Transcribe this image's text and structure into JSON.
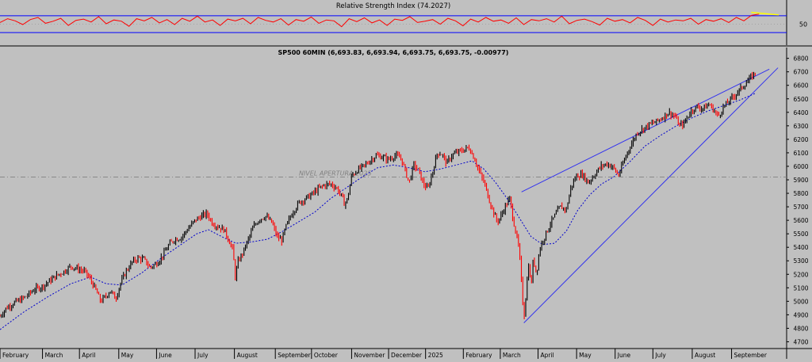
{
  "chart_data": [
    {
      "type": "line",
      "title": "Relative Strength Index (74.2027)",
      "ylim": [
        0,
        100
      ],
      "bands": [
        30,
        70
      ],
      "ticks": [
        {
          "value": 50,
          "label": "50"
        }
      ],
      "series": [
        {
          "color": "#ff0000",
          "values": [
            54,
            63,
            58,
            49,
            61,
            66,
            52,
            57,
            64,
            47,
            59,
            62,
            55,
            68,
            51,
            60,
            57,
            45,
            63,
            58,
            66,
            53,
            61,
            49,
            64,
            57,
            69,
            55,
            60,
            47,
            62,
            58,
            64,
            51,
            66,
            59,
            55,
            63,
            48,
            61,
            57,
            67,
            52,
            60,
            58,
            44,
            63,
            56,
            65,
            53,
            60,
            47,
            62,
            59,
            68,
            54,
            57,
            61,
            50,
            64,
            58,
            46,
            62,
            55,
            66,
            57,
            60,
            52,
            65,
            49,
            61,
            58,
            63,
            55,
            69,
            51,
            59,
            62,
            56,
            48,
            64,
            57,
            61,
            53,
            66,
            59,
            47,
            62,
            55,
            60,
            58,
            64,
            50,
            61,
            57,
            63,
            54,
            66,
            58,
            71,
            74
          ]
        }
      ],
      "annotations": [
        {
          "type": "trendline",
          "color": "#ffff00",
          "x0": 0.955,
          "y0": 78,
          "x1": 0.99,
          "y1": 72
        }
      ]
    },
    {
      "type": "line",
      "title": "SP500 60MIN (6,693.83, 6,693.94, 6,693.75, 6,693.75, -0.00977)",
      "ylim": [
        4650,
        6880
      ],
      "y_ticks": [
        4700,
        4800,
        4900,
        5000,
        5100,
        5200,
        5300,
        5400,
        5500,
        5600,
        5700,
        5800,
        5900,
        6000,
        6100,
        6200,
        6300,
        6400,
        6500,
        6600,
        6700,
        6800
      ],
      "x_ticks": [
        {
          "label": "February",
          "pos": 0.0
        },
        {
          "label": "March",
          "pos": 0.054
        },
        {
          "label": "April",
          "pos": 0.101
        },
        {
          "label": "May",
          "pos": 0.151
        },
        {
          "label": "June",
          "pos": 0.199
        },
        {
          "label": "July",
          "pos": 0.248
        },
        {
          "label": "August",
          "pos": 0.298
        },
        {
          "label": "September",
          "pos": 0.35
        },
        {
          "label": "October",
          "pos": 0.396
        },
        {
          "label": "November",
          "pos": 0.447
        },
        {
          "label": "December",
          "pos": 0.494
        },
        {
          "label": "2025",
          "pos": 0.541
        },
        {
          "label": "February",
          "pos": 0.589
        },
        {
          "label": "March",
          "pos": 0.636
        },
        {
          "label": "April",
          "pos": 0.684
        },
        {
          "label": "May",
          "pos": 0.733
        },
        {
          "label": "June",
          "pos": 0.782
        },
        {
          "label": "July",
          "pos": 0.83
        },
        {
          "label": "August",
          "pos": 0.88
        },
        {
          "label": "September",
          "pos": 0.93
        }
      ],
      "series": [
        {
          "color": "#000000",
          "points": [
            [
              0.0,
              4890
            ],
            [
              0.008,
              4950
            ],
            [
              0.018,
              4990
            ],
            [
              0.026,
              5010
            ],
            [
              0.034,
              5040
            ],
            [
              0.044,
              5090
            ],
            [
              0.054,
              5110
            ],
            [
              0.063,
              5150
            ],
            [
              0.072,
              5190
            ],
            [
              0.081,
              5220
            ],
            [
              0.09,
              5260
            ],
            [
              0.099,
              5240
            ],
            [
              0.108,
              5220
            ],
            [
              0.115,
              5160
            ],
            [
              0.122,
              5080
            ],
            [
              0.128,
              5000
            ],
            [
              0.135,
              5040
            ],
            [
              0.14,
              5080
            ],
            [
              0.147,
              5020
            ],
            [
              0.153,
              5130
            ],
            [
              0.16,
              5220
            ],
            [
              0.168,
              5290
            ],
            [
              0.175,
              5320
            ],
            [
              0.183,
              5310
            ],
            [
              0.191,
              5250
            ],
            [
              0.199,
              5280
            ],
            [
              0.207,
              5340
            ],
            [
              0.215,
              5420
            ],
            [
              0.222,
              5460
            ],
            [
              0.23,
              5470
            ],
            [
              0.238,
              5530
            ],
            [
              0.248,
              5600
            ],
            [
              0.256,
              5630
            ],
            [
              0.263,
              5650
            ],
            [
              0.27,
              5580
            ],
            [
              0.278,
              5550
            ],
            [
              0.285,
              5530
            ],
            [
              0.291,
              5450
            ],
            [
              0.296,
              5380
            ],
            [
              0.299,
              5180
            ],
            [
              0.303,
              5300
            ],
            [
              0.308,
              5350
            ],
            [
              0.315,
              5450
            ],
            [
              0.322,
              5550
            ],
            [
              0.33,
              5610
            ],
            [
              0.338,
              5630
            ],
            [
              0.346,
              5580
            ],
            [
              0.352,
              5480
            ],
            [
              0.358,
              5450
            ],
            [
              0.364,
              5560
            ],
            [
              0.372,
              5660
            ],
            [
              0.38,
              5730
            ],
            [
              0.388,
              5760
            ],
            [
              0.396,
              5790
            ],
            [
              0.404,
              5830
            ],
            [
              0.412,
              5860
            ],
            [
              0.42,
              5870
            ],
            [
              0.428,
              5840
            ],
            [
              0.434,
              5780
            ],
            [
              0.438,
              5720
            ],
            [
              0.442,
              5760
            ],
            [
              0.447,
              5930
            ],
            [
              0.454,
              5970
            ],
            [
              0.462,
              6000
            ],
            [
              0.47,
              6040
            ],
            [
              0.478,
              6080
            ],
            [
              0.486,
              6070
            ],
            [
              0.494,
              6050
            ],
            [
              0.502,
              6080
            ],
            [
              0.51,
              6060
            ],
            [
              0.516,
              5950
            ],
            [
              0.52,
              5880
            ],
            [
              0.526,
              6010
            ],
            [
              0.532,
              5970
            ],
            [
              0.538,
              5870
            ],
            [
              0.544,
              5830
            ],
            [
              0.55,
              5960
            ],
            [
              0.556,
              6100
            ],
            [
              0.562,
              6090
            ],
            [
              0.568,
              6020
            ],
            [
              0.574,
              6080
            ],
            [
              0.58,
              6100
            ],
            [
              0.589,
              6120
            ],
            [
              0.596,
              6140
            ],
            [
              0.603,
              6060
            ],
            [
              0.61,
              5950
            ],
            [
              0.616,
              5870
            ],
            [
              0.622,
              5750
            ],
            [
              0.628,
              5650
            ],
            [
              0.632,
              5590
            ],
            [
              0.636,
              5620
            ],
            [
              0.642,
              5700
            ],
            [
              0.648,
              5760
            ],
            [
              0.652,
              5620
            ],
            [
              0.656,
              5500
            ],
            [
              0.66,
              5380
            ],
            [
              0.663,
              5130
            ],
            [
              0.666,
              4870
            ],
            [
              0.669,
              5080
            ],
            [
              0.672,
              5280
            ],
            [
              0.675,
              5100
            ],
            [
              0.678,
              5320
            ],
            [
              0.682,
              5200
            ],
            [
              0.686,
              5390
            ],
            [
              0.69,
              5450
            ],
            [
              0.694,
              5500
            ],
            [
              0.7,
              5580
            ],
            [
              0.706,
              5640
            ],
            [
              0.712,
              5700
            ],
            [
              0.72,
              5680
            ],
            [
              0.726,
              5850
            ],
            [
              0.733,
              5930
            ],
            [
              0.74,
              5940
            ],
            [
              0.748,
              5880
            ],
            [
              0.756,
              5940
            ],
            [
              0.764,
              6000
            ],
            [
              0.772,
              6020
            ],
            [
              0.78,
              5990
            ],
            [
              0.786,
              5930
            ],
            [
              0.792,
              6020
            ],
            [
              0.798,
              6110
            ],
            [
              0.804,
              6180
            ],
            [
              0.81,
              6250
            ],
            [
              0.818,
              6280
            ],
            [
              0.826,
              6310
            ],
            [
              0.834,
              6330
            ],
            [
              0.842,
              6360
            ],
            [
              0.85,
              6400
            ],
            [
              0.858,
              6370
            ],
            [
              0.864,
              6300
            ],
            [
              0.87,
              6320
            ],
            [
              0.878,
              6410
            ],
            [
              0.886,
              6440
            ],
            [
              0.894,
              6430
            ],
            [
              0.902,
              6460
            ],
            [
              0.908,
              6410
            ],
            [
              0.913,
              6370
            ],
            [
              0.92,
              6440
            ],
            [
              0.928,
              6490
            ],
            [
              0.936,
              6540
            ],
            [
              0.944,
              6590
            ],
            [
              0.952,
              6640
            ],
            [
              0.96,
              6694
            ]
          ]
        },
        {
          "color": "#0000cc",
          "points": [
            [
              0.0,
              4790
            ],
            [
              0.03,
              4920
            ],
            [
              0.06,
              5030
            ],
            [
              0.09,
              5130
            ],
            [
              0.115,
              5180
            ],
            [
              0.135,
              5130
            ],
            [
              0.155,
              5120
            ],
            [
              0.18,
              5210
            ],
            [
              0.205,
              5320
            ],
            [
              0.23,
              5420
            ],
            [
              0.25,
              5500
            ],
            [
              0.265,
              5530
            ],
            [
              0.285,
              5470
            ],
            [
              0.3,
              5430
            ],
            [
              0.32,
              5440
            ],
            [
              0.34,
              5460
            ],
            [
              0.36,
              5520
            ],
            [
              0.38,
              5590
            ],
            [
              0.4,
              5660
            ],
            [
              0.42,
              5760
            ],
            [
              0.44,
              5840
            ],
            [
              0.46,
              5920
            ],
            [
              0.48,
              5990
            ],
            [
              0.5,
              6010
            ],
            [
              0.52,
              5990
            ],
            [
              0.54,
              5960
            ],
            [
              0.56,
              5980
            ],
            [
              0.58,
              6010
            ],
            [
              0.6,
              6040
            ],
            [
              0.615,
              5980
            ],
            [
              0.63,
              5880
            ],
            [
              0.645,
              5760
            ],
            [
              0.66,
              5620
            ],
            [
              0.675,
              5480
            ],
            [
              0.69,
              5420
            ],
            [
              0.705,
              5430
            ],
            [
              0.72,
              5520
            ],
            [
              0.735,
              5680
            ],
            [
              0.75,
              5790
            ],
            [
              0.765,
              5870
            ],
            [
              0.78,
              5920
            ],
            [
              0.8,
              6030
            ],
            [
              0.82,
              6150
            ],
            [
              0.84,
              6230
            ],
            [
              0.86,
              6300
            ],
            [
              0.88,
              6360
            ],
            [
              0.9,
              6410
            ],
            [
              0.92,
              6450
            ],
            [
              0.94,
              6490
            ],
            [
              0.96,
              6540
            ]
          ]
        }
      ],
      "annotations": [
        {
          "type": "hline",
          "y": 5920,
          "label": "NIVEL APERTURA 2025",
          "color": "#808080",
          "label_x": 0.38
        },
        {
          "type": "trendline",
          "color": "#3333ee",
          "x0": 0.663,
          "y0": 5810,
          "x1": 0.978,
          "y1": 6720
        },
        {
          "type": "trendline",
          "color": "#3333ee",
          "x0": 0.666,
          "y0": 4840,
          "x1": 0.989,
          "y1": 6730
        }
      ]
    }
  ]
}
